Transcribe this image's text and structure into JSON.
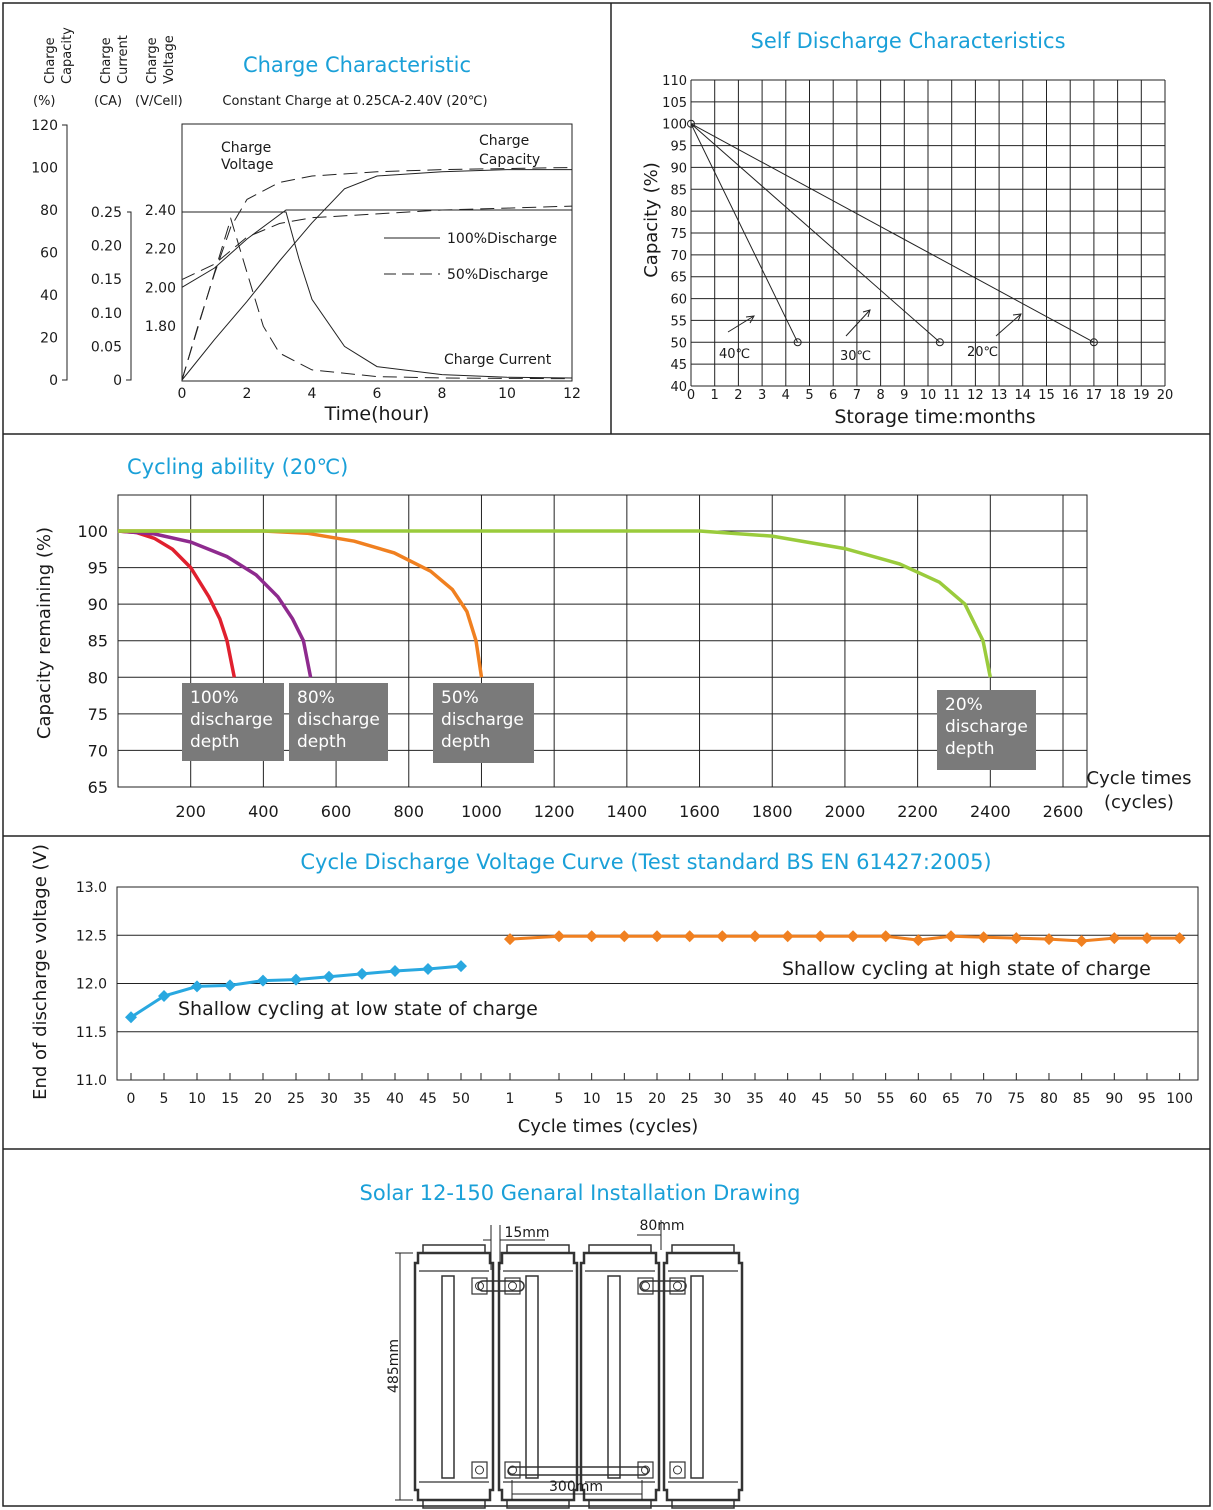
{
  "colors": {
    "title": "#1aa0d8",
    "grid": "#1a1a1a",
    "dep100": "#e0202e",
    "dep80": "#8e2a8e",
    "dep50": "#f08020",
    "dep20": "#9acb3c",
    "low": "#29a8e0",
    "high": "#f08020",
    "box": "#7a7a7a"
  },
  "charge": {
    "title": "Charge Characteristic",
    "subtitle": "Constant Charge at 0.25CA-2.40V  (20℃)",
    "axis_cap": [
      "Charge",
      "Capacity"
    ],
    "axis_cur": [
      "Charge",
      "Current"
    ],
    "axis_volt": [
      "Charge",
      "Voltage"
    ],
    "unit_cap": "(%)",
    "unit_cur": "(CA)",
    "unit_volt": "(V/Cell)",
    "cap_ticks": [
      "120",
      "100",
      "80",
      "60",
      "40",
      "20",
      "0"
    ],
    "cur_ticks": [
      "0.25",
      "0.20",
      "0.15",
      "0.10",
      "0.05",
      "0"
    ],
    "volt_ticks": [
      "2.40",
      "2.20",
      "2.00",
      "1.80"
    ],
    "x_ticks": [
      "0",
      "2",
      "4",
      "6",
      "8",
      "10",
      "12"
    ],
    "xlabel": "Time(hour)",
    "lbl_voltage": [
      "Charge",
      "Voltage"
    ],
    "lbl_capacity": [
      "Charge",
      "Capacity"
    ],
    "lbl_current": "Charge Current",
    "legend_full": "100%Discharge",
    "legend_half": "50%Discharge"
  },
  "selfdis": {
    "title": "Self Discharge Characteristics",
    "ylabel": "Capacity (%)",
    "xlabel": "Storage time:months",
    "y_ticks": [
      "110",
      "105",
      "100",
      "95",
      "90",
      "85",
      "80",
      "75",
      "70",
      "65",
      "60",
      "55",
      "50",
      "45",
      "40"
    ],
    "x_ticks": [
      "0",
      "1",
      "2",
      "3",
      "4",
      "5",
      "6",
      "7",
      "8",
      "9",
      "10",
      "11",
      "12",
      "13",
      "14",
      "15",
      "16",
      "17",
      "18",
      "19",
      "20"
    ],
    "temp_labels": [
      "40℃",
      "30℃",
      "20℃"
    ]
  },
  "cycling": {
    "title": "Cycling ability  (20℃)",
    "ylabel": "Capacity remaining  (%)",
    "xlabel": [
      "Cycle times",
      "(cycles)"
    ],
    "y_ticks": [
      "100",
      "95",
      "90",
      "85",
      "80",
      "75",
      "70",
      "65"
    ],
    "x_ticks": [
      "200",
      "400",
      "600",
      "800",
      "1000",
      "1200",
      "1400",
      "1600",
      "1800",
      "2000",
      "2200",
      "2400",
      "2600"
    ],
    "boxes": [
      [
        "100%",
        "discharge",
        "depth"
      ],
      [
        "80%",
        "discharge",
        "depth"
      ],
      [
        "50%",
        "discharge",
        "depth"
      ],
      [
        "20%",
        "discharge",
        "depth"
      ]
    ]
  },
  "cycvolt": {
    "title": "Cycle Discharge Voltage Curve  (Test standard BS EN 61427:2005)",
    "ylabel": "End of discharge voltage (V)",
    "xlabel": "Cycle times   (cycles)",
    "y_ticks": [
      "13.0",
      "12.5",
      "12.0",
      "11.5",
      "11.0"
    ],
    "x_ticks_low": [
      "0",
      "5",
      "10",
      "15",
      "20",
      "25",
      "30",
      "35",
      "40",
      "45",
      "50"
    ],
    "x_ticks_high": [
      "1",
      "5",
      "10",
      "15",
      "20",
      "25",
      "30",
      "35",
      "40",
      "45",
      "50",
      "55",
      "60",
      "65",
      "70",
      "75",
      "80",
      "85",
      "90",
      "95",
      "100"
    ],
    "label_low": "Shallow cycling at low state of charge",
    "label_high": "Shallow cycling at high state of charge"
  },
  "drawing": {
    "title": "Solar 12-150 Genaral Installation Drawing",
    "dim_gap": "15mm",
    "dim_width": "80mm",
    "dim_height": "485mm",
    "dim_span": "300mm"
  },
  "chart_data": [
    {
      "type": "line",
      "title": "Charge Characteristic",
      "xlabel": "Time(hour)",
      "xlim": [
        0,
        12
      ],
      "axes": {
        "capacity_pct": [
          0,
          120
        ],
        "current_CA": [
          0,
          0.25
        ],
        "voltage_V_per_cell": [
          1.8,
          2.4
        ]
      },
      "series": [
        {
          "name": "100%Discharge",
          "axis": "voltage",
          "x": [
            0,
            1,
            2,
            3.2,
            6,
            12
          ],
          "y": [
            2.0,
            2.1,
            2.25,
            2.4,
            2.4,
            2.4
          ]
        },
        {
          "name": "100%Discharge",
          "axis": "capacity",
          "x": [
            0,
            1,
            2,
            3,
            4,
            5,
            6,
            8,
            10,
            12
          ],
          "y": [
            0,
            19,
            37,
            56,
            74,
            90,
            96,
            98,
            99,
            99
          ]
        },
        {
          "name": "100%Discharge",
          "axis": "current",
          "x": [
            0,
            3.2,
            3.6,
            4,
            5,
            6,
            8,
            10,
            12
          ],
          "y": [
            0.25,
            0.25,
            0.18,
            0.12,
            0.05,
            0.02,
            0.008,
            0.004,
            0.003
          ]
        },
        {
          "name": "50%Discharge",
          "axis": "voltage",
          "x": [
            0,
            1,
            2,
            3,
            4,
            6,
            8,
            10,
            12
          ],
          "y": [
            2.04,
            2.12,
            2.26,
            2.33,
            2.36,
            2.38,
            2.4,
            2.41,
            2.42
          ]
        },
        {
          "name": "50%Discharge",
          "axis": "capacity",
          "x": [
            0,
            0.5,
            1,
            1.5,
            2,
            3,
            4,
            6,
            8,
            12
          ],
          "y": [
            0,
            26,
            50,
            72,
            85,
            93,
            96,
            98,
            99,
            100
          ]
        },
        {
          "name": "50%Discharge",
          "axis": "current",
          "x": [
            0,
            0.5,
            1,
            1.5,
            2,
            2.5,
            3,
            4,
            6,
            8,
            12
          ],
          "y": [
            0,
            0.08,
            0.16,
            0.24,
            0.16,
            0.08,
            0.04,
            0.015,
            0.005,
            0.003,
            0.002
          ]
        }
      ]
    },
    {
      "type": "line",
      "title": "Self Discharge Characteristics",
      "xlabel": "Storage time:months",
      "ylabel": "Capacity (%)",
      "xlim": [
        0,
        20
      ],
      "ylim": [
        40,
        110
      ],
      "grid": true,
      "series": [
        {
          "name": "40℃",
          "x": [
            0,
            4.5
          ],
          "y": [
            100,
            50
          ]
        },
        {
          "name": "30℃",
          "x": [
            0,
            10.5
          ],
          "y": [
            100,
            50
          ]
        },
        {
          "name": "20℃",
          "x": [
            0,
            17
          ],
          "y": [
            100,
            50
          ]
        }
      ]
    },
    {
      "type": "line",
      "title": "Cycling ability  (20℃)",
      "xlabel": "Cycle times (cycles)",
      "ylabel": "Capacity remaining  (%)",
      "xlim": [
        0,
        2600
      ],
      "ylim": [
        65,
        100
      ],
      "grid": true,
      "series": [
        {
          "name": "100% discharge depth",
          "x": [
            0,
            50,
            100,
            150,
            200,
            250,
            280,
            300,
            320
          ],
          "y": [
            100,
            99.8,
            99,
            97.5,
            95,
            91,
            88,
            85,
            80
          ]
        },
        {
          "name": "80% discharge depth",
          "x": [
            0,
            100,
            200,
            300,
            380,
            440,
            480,
            510,
            530
          ],
          "y": [
            100,
            99.6,
            98.5,
            96.5,
            94,
            91,
            88,
            85,
            80
          ]
        },
        {
          "name": "50% discharge depth",
          "x": [
            0,
            400,
            520,
            650,
            760,
            860,
            920,
            960,
            985,
            1000
          ],
          "y": [
            100,
            100,
            99.7,
            98.6,
            97,
            94.5,
            92,
            89,
            85,
            80
          ]
        },
        {
          "name": "20% discharge depth",
          "x": [
            0,
            1600,
            1800,
            2000,
            2150,
            2260,
            2330,
            2380,
            2400
          ],
          "y": [
            100,
            100,
            99.3,
            97.6,
            95.5,
            93,
            90,
            85,
            80
          ]
        }
      ]
    },
    {
      "type": "line",
      "title": "Cycle Discharge Voltage Curve  (Test standard BS EN 61427:2005)",
      "xlabel": "Cycle times   (cycles)",
      "ylabel": "End of discharge voltage (V)",
      "ylim": [
        11.0,
        13.0
      ],
      "series": [
        {
          "name": "Shallow cycling at low state of charge",
          "x": [
            0,
            5,
            10,
            15,
            20,
            25,
            30,
            35,
            40,
            45,
            50
          ],
          "y": [
            11.65,
            11.87,
            11.97,
            11.98,
            12.03,
            12.04,
            12.07,
            12.1,
            12.13,
            12.15,
            12.18
          ]
        },
        {
          "name": "Shallow cycling at high state of charge",
          "x": [
            1,
            5,
            10,
            15,
            20,
            25,
            30,
            35,
            40,
            45,
            50,
            55,
            60,
            65,
            70,
            75,
            80,
            85,
            90,
            95,
            100
          ],
          "y": [
            12.46,
            12.49,
            12.49,
            12.49,
            12.49,
            12.49,
            12.49,
            12.49,
            12.49,
            12.49,
            12.49,
            12.49,
            12.45,
            12.49,
            12.48,
            12.47,
            12.46,
            12.44,
            12.47,
            12.47,
            12.47
          ]
        }
      ]
    }
  ]
}
